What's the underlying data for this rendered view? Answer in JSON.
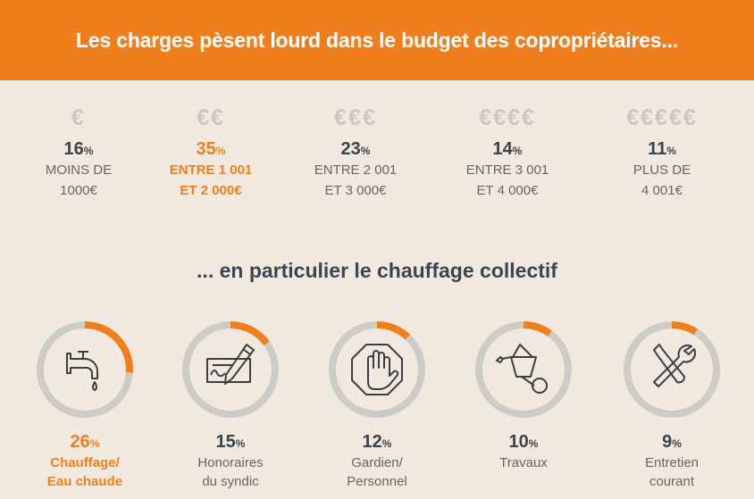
{
  "header": {
    "title": "Les charges pèsent lourd dans le budget des copropriétaires..."
  },
  "subtitle": "... en particulier le chauffage collectif",
  "accent": "#ee7f1c",
  "chart_data": [
    {
      "type": "table",
      "title": "Les charges pèsent lourd dans le budget des copropriétaires...",
      "items": [
        {
          "euros": "€",
          "value": 16,
          "unit": "%",
          "line1": "MOINS DE",
          "line2": "1000€"
        },
        {
          "euros": "€€",
          "value": 35,
          "unit": "%",
          "line1": "ENTRE 1 001",
          "line2": "ET 2 000€",
          "highlight": true
        },
        {
          "euros": "€€€",
          "value": 23,
          "unit": "%",
          "line1": "ENTRE 2 001",
          "line2": "ET 3 000€"
        },
        {
          "euros": "€€€€",
          "value": 14,
          "unit": "%",
          "line1": "ENTRE 3 001",
          "line2": "ET 4 000€"
        },
        {
          "euros": "€€€€€",
          "value": 11,
          "unit": "%",
          "line1": "PLUS DE",
          "line2": "4 001€"
        }
      ]
    },
    {
      "type": "pie",
      "title": "... en particulier le chauffage collectif",
      "items": [
        {
          "icon": "faucet-icon",
          "value": 26,
          "unit": "%",
          "line1": "Chauffage/",
          "line2": "Eau chaude",
          "highlight": true
        },
        {
          "icon": "cheque-pen-icon",
          "value": 15,
          "unit": "%",
          "line1": "Honoraires",
          "line2": "du syndic"
        },
        {
          "icon": "stop-hand-icon",
          "value": 12,
          "unit": "%",
          "line1": "Gardien/",
          "line2": "Personnel"
        },
        {
          "icon": "wheelbarrow-icon",
          "value": 10,
          "unit": "%",
          "line1": "Travaux",
          "line2": ""
        },
        {
          "icon": "tools-icon",
          "value": 9,
          "unit": "%",
          "line1": "Entretien",
          "line2": "courant"
        }
      ]
    }
  ]
}
